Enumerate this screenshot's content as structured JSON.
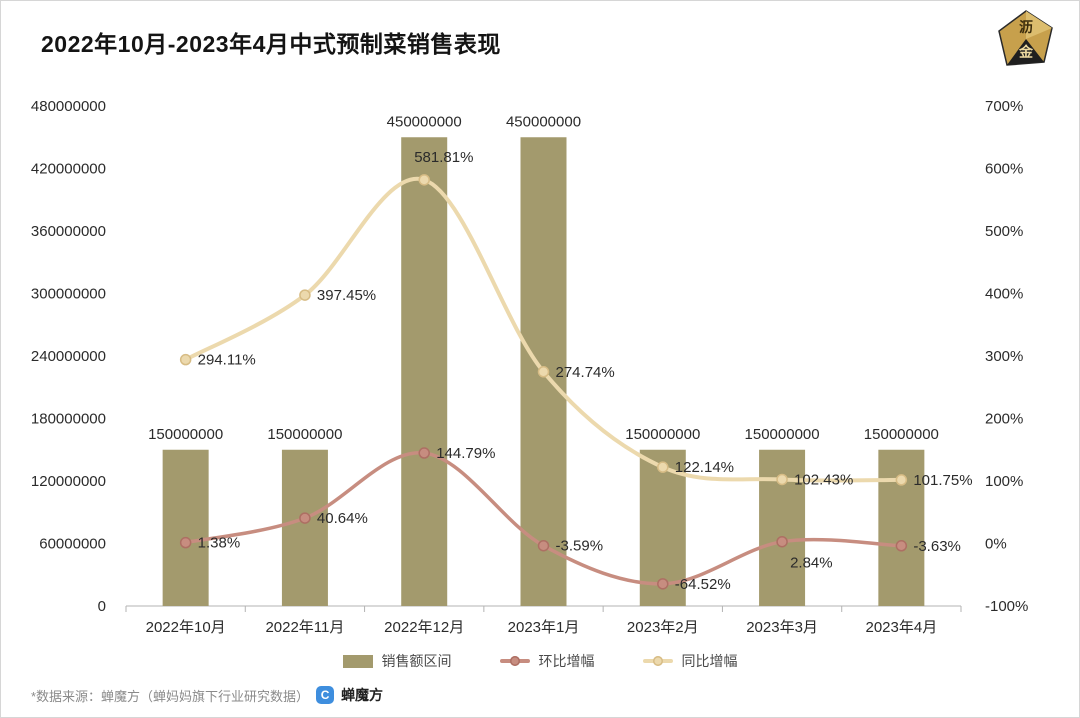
{
  "header": {
    "title": "2022年10月-2023年4月中式预制菜销售表现",
    "logo_char1": "沥",
    "logo_char2": "金"
  },
  "chart_data": {
    "type": "combo",
    "title": "2022年10月-2023年4月中式预制菜销售表现",
    "categories": [
      "2022年10月",
      "2022年11月",
      "2022年12月",
      "2023年1月",
      "2023年2月",
      "2023年3月",
      "2023年4月"
    ],
    "bar_series": {
      "name": "销售额区间",
      "axis": "left",
      "color": "#a39a6d",
      "values": [
        150000000,
        150000000,
        450000000,
        450000000,
        150000000,
        150000000,
        150000000
      ],
      "labels": [
        "150000000",
        "150000000",
        "450000000",
        "450000000",
        "150000000",
        "150000000",
        "150000000"
      ]
    },
    "line_series": [
      {
        "name": "环比增幅",
        "axis": "right",
        "color": "#c78d80",
        "marker_stroke": "#ad6f63",
        "values": [
          1.38,
          40.64,
          144.79,
          -3.59,
          -64.52,
          2.84,
          -3.63
        ],
        "labels": [
          "1.38%",
          "40.64%",
          "144.79%",
          "-3.59%",
          "-64.52%",
          "2.84%",
          "-3.63%"
        ]
      },
      {
        "name": "同比增幅",
        "axis": "right",
        "color": "#ecd9ad",
        "marker_stroke": "#d7bc85",
        "values": [
          294.11,
          397.45,
          581.81,
          274.74,
          122.14,
          102.43,
          101.75
        ],
        "labels": [
          "294.11%",
          "397.45%",
          "581.81%",
          "274.74%",
          "122.14%",
          "102.43%",
          "101.75%"
        ]
      }
    ],
    "left_axis": {
      "min": 0,
      "max": 480000000,
      "step": 60000000,
      "ticks": [
        "0",
        "60000000",
        "120000000",
        "180000000",
        "240000000",
        "300000000",
        "360000000",
        "420000000",
        "480000000"
      ]
    },
    "right_axis": {
      "min": -100,
      "max": 700,
      "step": 100,
      "ticks": [
        "-100%",
        "0%",
        "100%",
        "200%",
        "300%",
        "400%",
        "500%",
        "600%",
        "700%"
      ]
    },
    "legend": [
      "销售额区间",
      "环比增幅",
      "同比增幅"
    ],
    "legend_position": "bottom",
    "grid": false
  },
  "footer": {
    "source_text": "*数据来源：蝉魔方（蝉妈妈旗下行业研究数据）",
    "brand_icon": "C",
    "brand": "蝉魔方"
  }
}
